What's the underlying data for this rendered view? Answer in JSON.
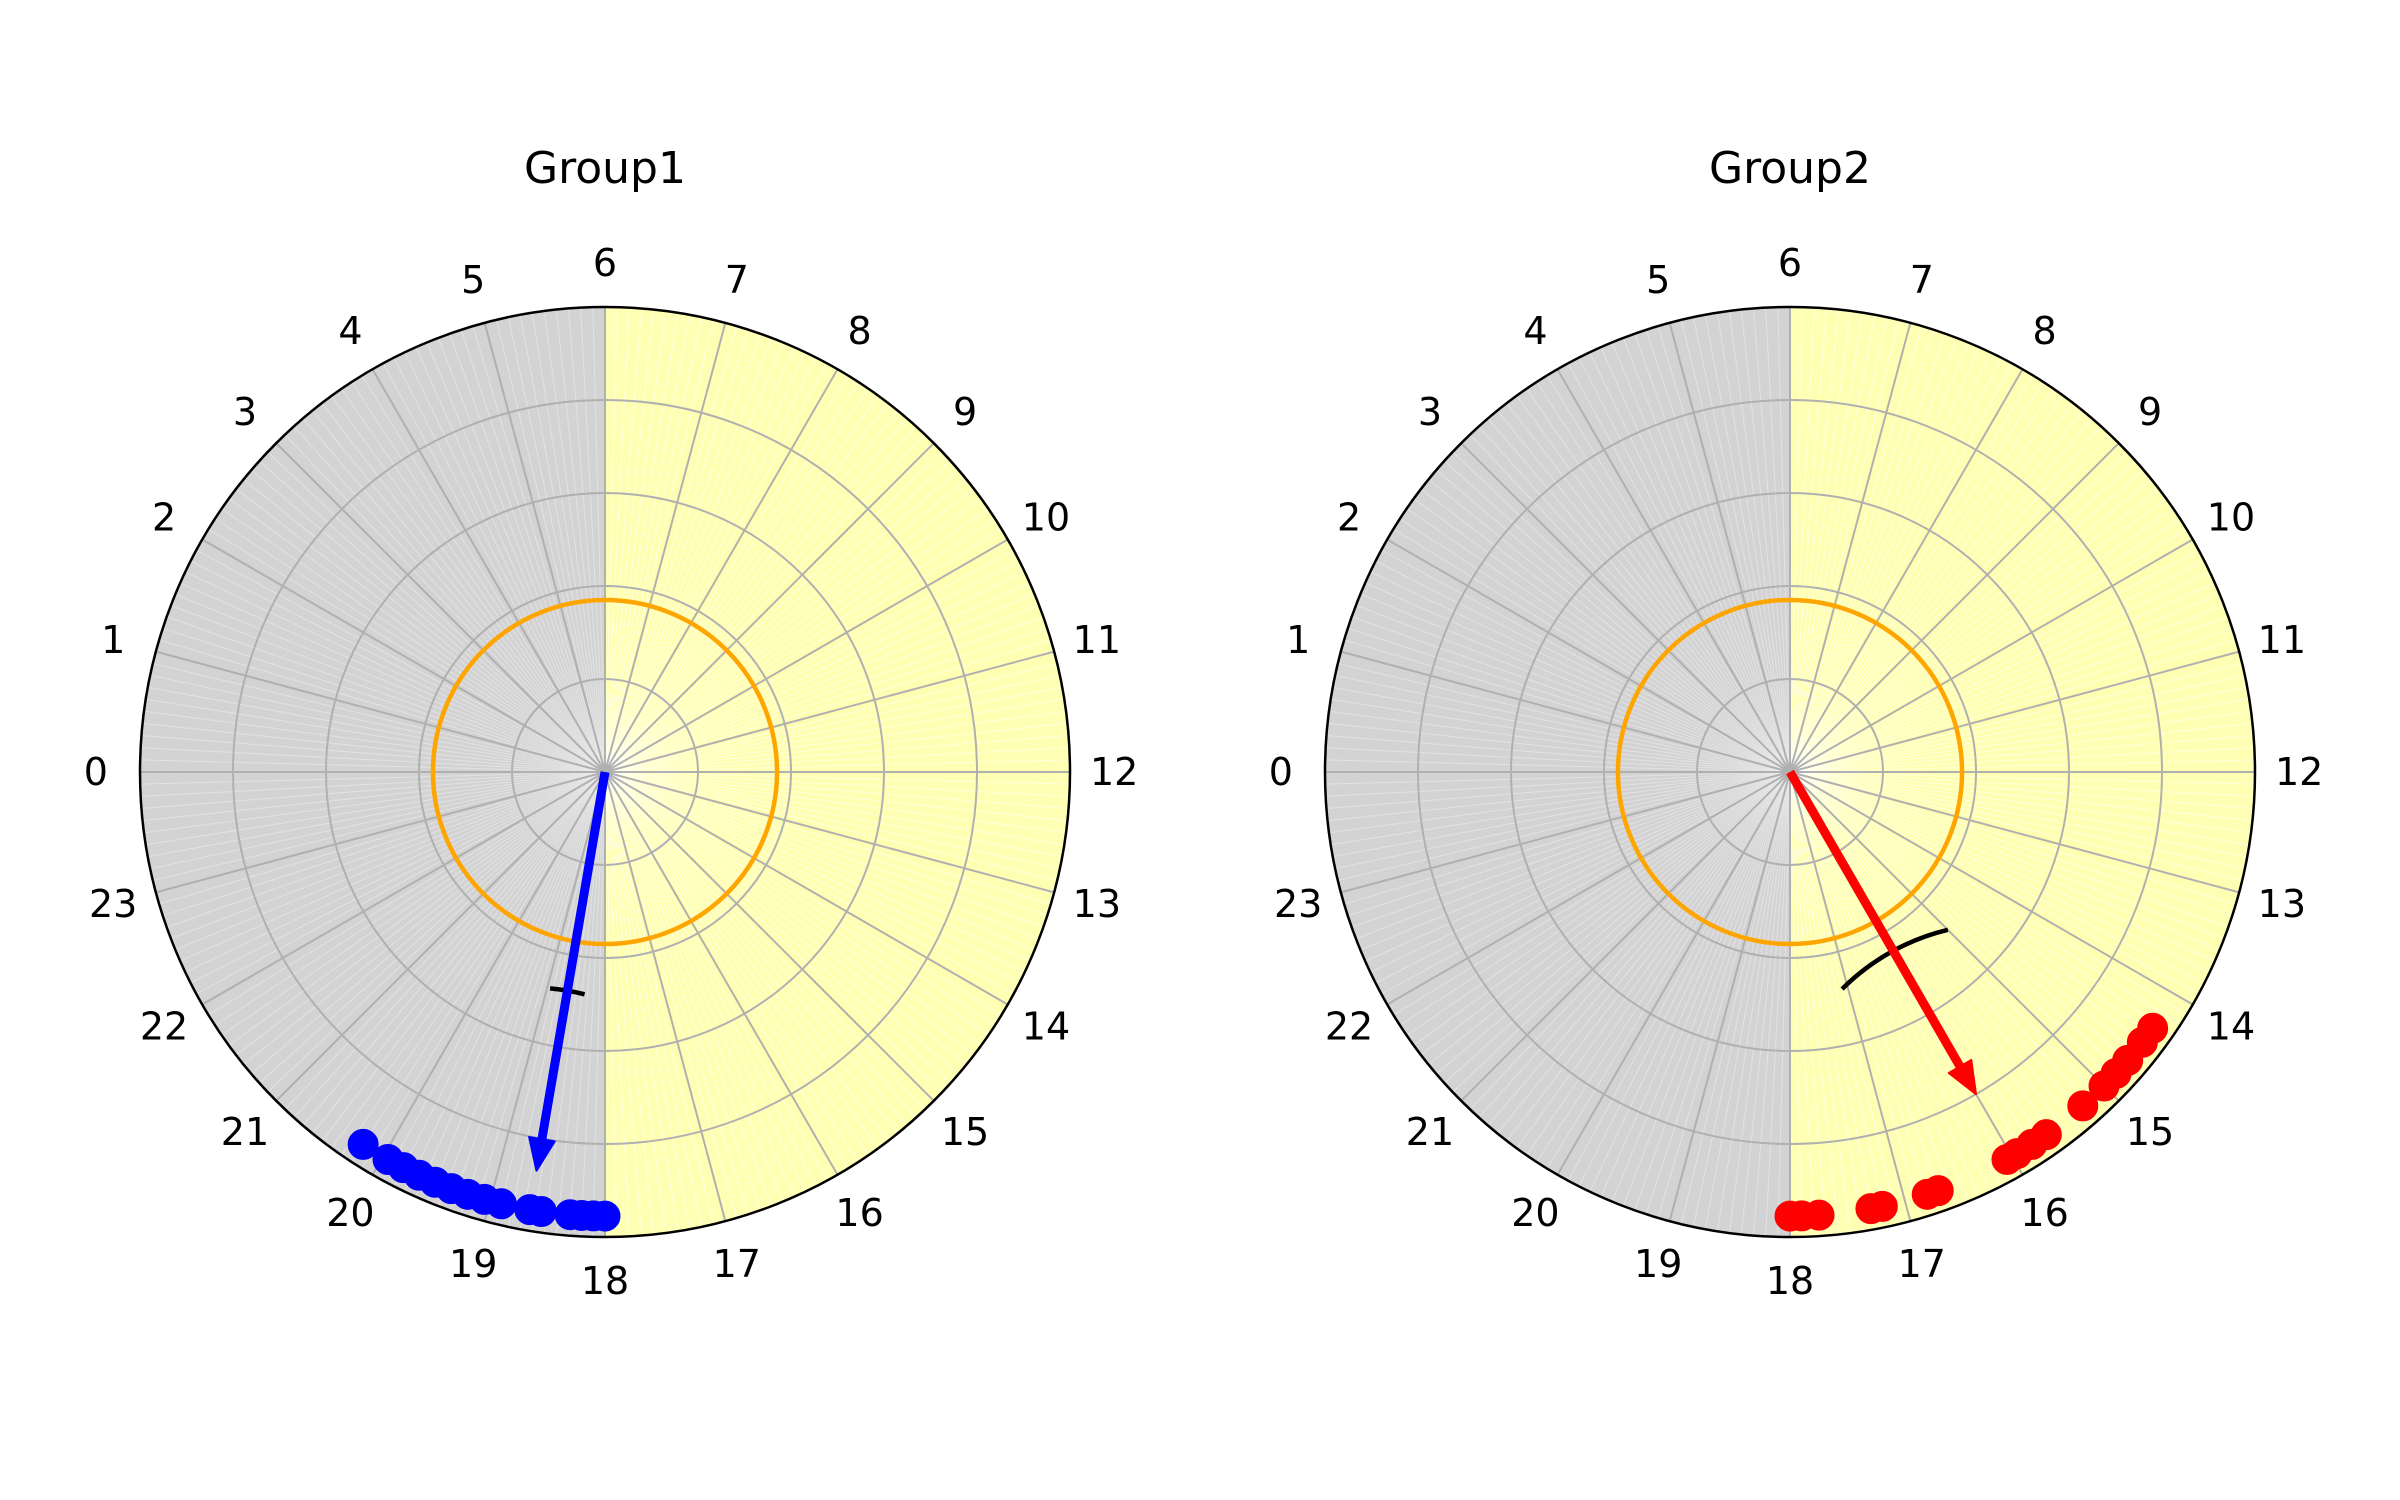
{
  "chart_data": [
    {
      "type": "scatter",
      "subtype": "polar-clock",
      "title": "Group1",
      "theta_ticks": [
        "0",
        "1",
        "2",
        "3",
        "4",
        "5",
        "6",
        "7",
        "8",
        "9",
        "10",
        "11",
        "12",
        "13",
        "14",
        "15",
        "16",
        "17",
        "18",
        "19",
        "20",
        "21",
        "22",
        "23"
      ],
      "hours_per_circle": 24,
      "r_lim": [
        0,
        1
      ],
      "r_grid": [
        0.2,
        0.4,
        0.6,
        0.8
      ],
      "night_shading": {
        "from_hour": 18,
        "to_hour": 6,
        "color": "#d3d3d3"
      },
      "day_shading": {
        "from_hour": 6,
        "to_hour": 18,
        "color": "#ffffb3"
      },
      "reference_circle": {
        "r": 0.37,
        "color": "#ffa500"
      },
      "point_color": "#0000ff",
      "points": [
        {
          "hour": 18.0,
          "r": 0.955
        },
        {
          "hour": 18.1,
          "r": 0.955
        },
        {
          "hour": 18.2,
          "r": 0.955
        },
        {
          "hour": 18.3,
          "r": 0.955
        },
        {
          "hour": 18.55,
          "r": 0.955
        },
        {
          "hour": 18.65,
          "r": 0.955
        },
        {
          "hour": 18.9,
          "r": 0.955
        },
        {
          "hour": 19.05,
          "r": 0.955
        },
        {
          "hour": 19.2,
          "r": 0.955
        },
        {
          "hour": 19.35,
          "r": 0.955
        },
        {
          "hour": 19.5,
          "r": 0.955
        },
        {
          "hour": 19.65,
          "r": 0.955
        },
        {
          "hour": 19.8,
          "r": 0.955
        },
        {
          "hour": 19.95,
          "r": 0.955
        },
        {
          "hour": 20.2,
          "r": 0.955
        }
      ],
      "mean_vector": {
        "hour": 18.65,
        "r": 0.87,
        "color": "#0000ff"
      },
      "ci_arc": {
        "from_hour": 18.35,
        "to_hour": 18.95,
        "r": 0.48,
        "color": "#000000"
      }
    },
    {
      "type": "scatter",
      "subtype": "polar-clock",
      "title": "Group2",
      "theta_ticks": [
        "0",
        "1",
        "2",
        "3",
        "4",
        "5",
        "6",
        "7",
        "8",
        "9",
        "10",
        "11",
        "12",
        "13",
        "14",
        "15",
        "16",
        "17",
        "18",
        "19",
        "20",
        "21",
        "22",
        "23"
      ],
      "hours_per_circle": 24,
      "r_lim": [
        0,
        1
      ],
      "r_grid": [
        0.2,
        0.4,
        0.6,
        0.8
      ],
      "night_shading": {
        "from_hour": 18,
        "to_hour": 6,
        "color": "#d3d3d3"
      },
      "day_shading": {
        "from_hour": 6,
        "to_hour": 18,
        "color": "#ffffb3"
      },
      "reference_circle": {
        "r": 0.37,
        "color": "#ffa500"
      },
      "point_color": "#ff0000",
      "points": [
        {
          "hour": 14.35,
          "r": 0.955
        },
        {
          "hour": 14.5,
          "r": 0.955
        },
        {
          "hour": 14.7,
          "r": 0.955
        },
        {
          "hour": 14.85,
          "r": 0.955
        },
        {
          "hour": 15.0,
          "r": 0.955
        },
        {
          "hour": 15.25,
          "r": 0.955
        },
        {
          "hour": 15.65,
          "r": 0.955
        },
        {
          "hour": 15.8,
          "r": 0.955
        },
        {
          "hour": 15.95,
          "r": 0.955
        },
        {
          "hour": 16.05,
          "r": 0.955
        },
        {
          "hour": 16.7,
          "r": 0.955
        },
        {
          "hour": 16.8,
          "r": 0.955
        },
        {
          "hour": 17.2,
          "r": 0.955
        },
        {
          "hour": 17.3,
          "r": 0.955
        },
        {
          "hour": 17.75,
          "r": 0.955
        },
        {
          "hour": 17.9,
          "r": 0.955
        },
        {
          "hour": 18.0,
          "r": 0.955
        }
      ],
      "mean_vector": {
        "hour": 16.0,
        "r": 0.8,
        "color": "#ff0000"
      },
      "ci_arc": {
        "from_hour": 15.0,
        "to_hour": 17.1,
        "r": 0.48,
        "color": "#000000"
      }
    }
  ]
}
